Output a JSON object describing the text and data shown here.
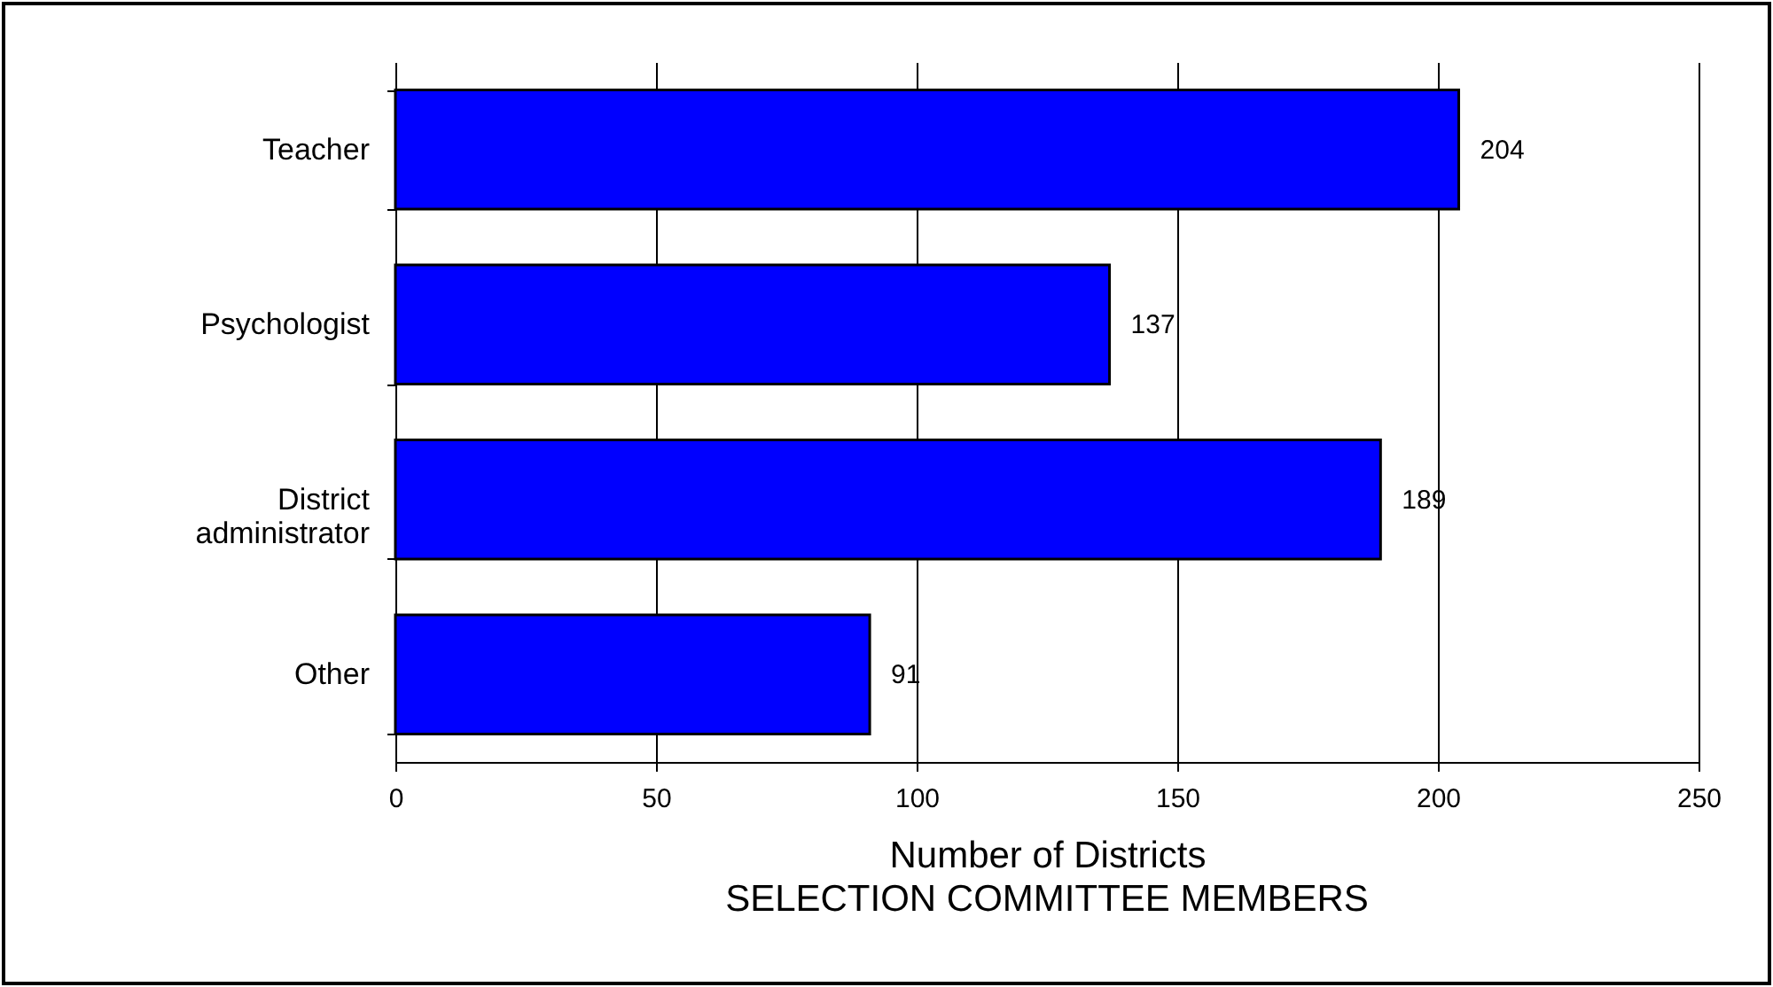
{
  "chart_data": {
    "type": "bar",
    "orientation": "horizontal",
    "title": "SELECTION COMMITTEE MEMBERS",
    "xlabel": "Number of Districts",
    "categories": [
      "Teacher",
      "Psychologist",
      "District administrator",
      "Other"
    ],
    "values": [
      204,
      137,
      189,
      91
    ],
    "color": "#0000ff",
    "data_labels": true,
    "xlim": [
      0,
      250
    ],
    "xticks": [
      0,
      50,
      100,
      150,
      200,
      250
    ],
    "grid": "x"
  }
}
